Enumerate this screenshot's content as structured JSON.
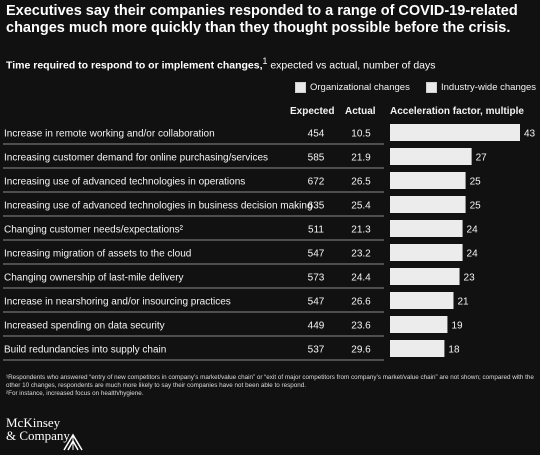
{
  "header": {
    "title": "Executives say their companies responded to a range of COVID-19-related changes much more quickly than they thought possible before the crisis.",
    "subtitle_bold": "Time required to respond to or implement changes,",
    "subtitle_sup": "1",
    "subtitle_rest": "expected vs actual, number of days"
  },
  "legend": {
    "organizational": "Organizational changes",
    "industry": "Industry-wide changes"
  },
  "columns": {
    "expected": "Expected",
    "actual": "Actual",
    "acceleration": "Acceleration factor, multiple"
  },
  "chart_data": {
    "type": "bar",
    "categories": [
      "Increase in remote working and/or collaboration",
      "Increasing customer demand for online purchasing/services",
      "Increasing use of advanced technologies in operations",
      "Increasing use of advanced technologies in business decision making",
      "Changing customer needs/expectations²",
      "Increasing migration of assets to the cloud",
      "Changing ownership of last-mile delivery",
      "Increase in nearshoring and/or insourcing practices",
      "Increased spending on data security",
      "Build redundancies into supply chain"
    ],
    "expected": [
      "454",
      "585",
      "672",
      "635",
      "511",
      "547",
      "573",
      "547",
      "449",
      "537"
    ],
    "actual": [
      "10.5",
      "21.9",
      "26.5",
      "25.4",
      "21.3",
      "23.2",
      "24.4",
      "26.6",
      "23.6",
      "29.6"
    ],
    "values": [
      43,
      27,
      25,
      25,
      24,
      24,
      23,
      21,
      19,
      18
    ],
    "xlim": [
      0,
      43
    ],
    "bar_color": "#ececec",
    "row_line_color": "#8a8a8a"
  },
  "footnotes": {
    "note1": "¹Respondents who answered “entry of new competitors in company’s market/value chain” or “exit of major competitors from company’s market/value chain” are not shown; compared with the other 10 changes, respondents are much more likely to say their companies have not been able to respond.",
    "note2": "²For instance, increased focus on health/hygiene."
  },
  "logo": {
    "line1": "McKinsey",
    "line2": "& Company"
  }
}
